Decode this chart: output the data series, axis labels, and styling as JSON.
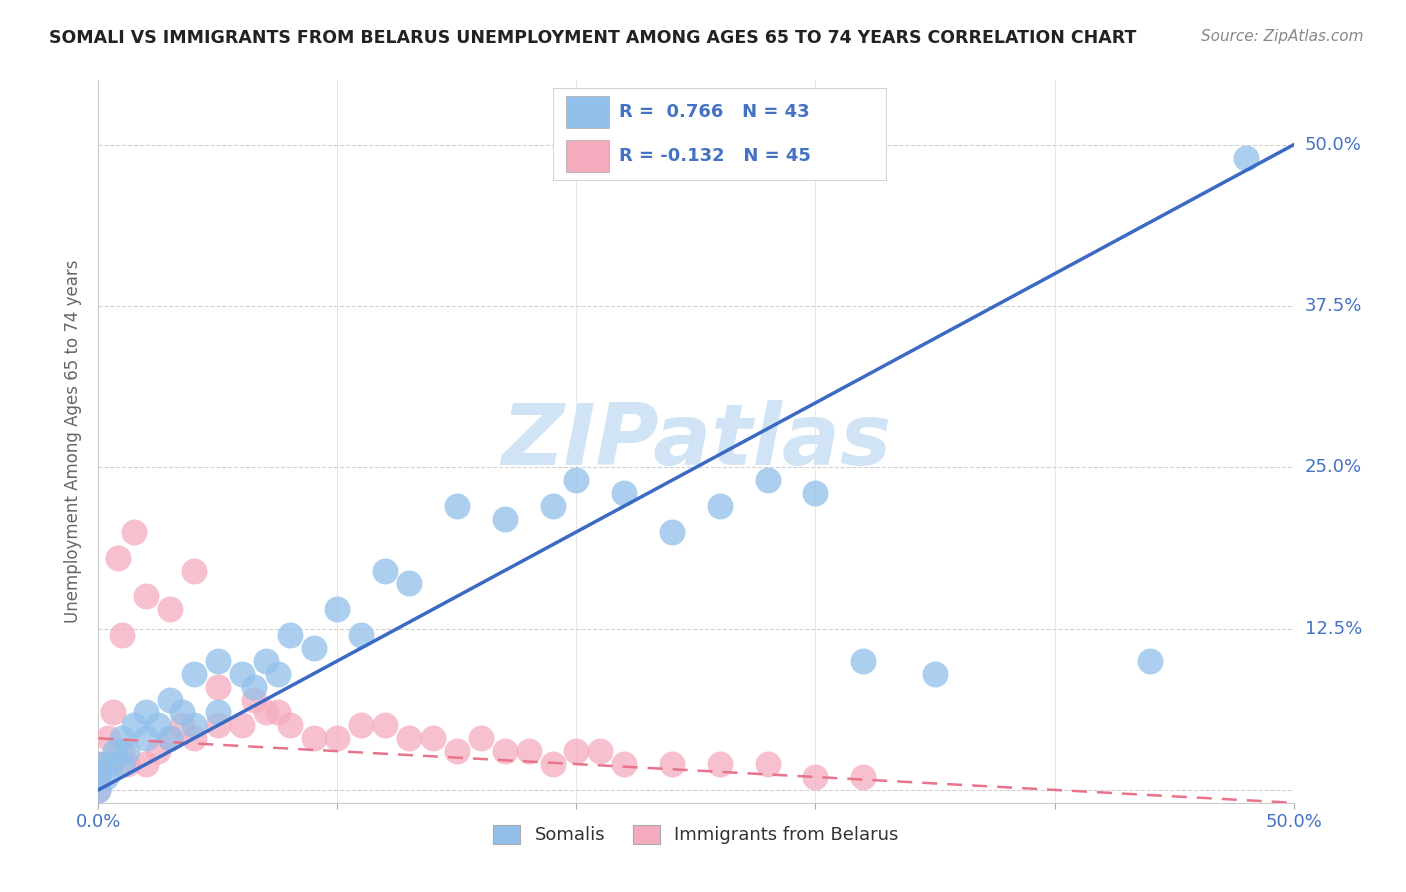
{
  "title": "SOMALI VS IMMIGRANTS FROM BELARUS UNEMPLOYMENT AMONG AGES 65 TO 74 YEARS CORRELATION CHART",
  "source": "Source: ZipAtlas.com",
  "ylabel": "Unemployment Among Ages 65 to 74 years",
  "xlim": [
    0.0,
    0.5
  ],
  "ylim": [
    -0.01,
    0.55
  ],
  "xticks": [
    0.0,
    0.1,
    0.2,
    0.3,
    0.4,
    0.5
  ],
  "yticks": [
    0.0,
    0.125,
    0.25,
    0.375,
    0.5
  ],
  "xticklabels": [
    "0.0%",
    "",
    "",
    "",
    "",
    "50.0%"
  ],
  "yticklabels_right": [
    "",
    "12.5%",
    "25.0%",
    "37.5%",
    "50.0%"
  ],
  "legend_blue_r": "R =  0.766",
  "legend_blue_n": "N = 43",
  "legend_pink_r": "R = -0.132",
  "legend_pink_n": "N = 45",
  "legend_label1": "Somalis",
  "legend_label2": "Immigrants from Belarus",
  "blue_color": "#92C0EA",
  "pink_color": "#F5ABBE",
  "blue_line_color": "#3B6AC4",
  "pink_line_color": "#E8748A",
  "watermark_color": "#D0E4F5",
  "somali_x": [
    0.0,
    0.0,
    0.0,
    0.003,
    0.005,
    0.007,
    0.01,
    0.01,
    0.012,
    0.015,
    0.02,
    0.02,
    0.025,
    0.03,
    0.03,
    0.035,
    0.04,
    0.04,
    0.05,
    0.05,
    0.06,
    0.065,
    0.07,
    0.075,
    0.08,
    0.09,
    0.1,
    0.11,
    0.12,
    0.13,
    0.15,
    0.17,
    0.19,
    0.2,
    0.22,
    0.24,
    0.26,
    0.28,
    0.3,
    0.32,
    0.35,
    0.44,
    0.48
  ],
  "somali_y": [
    0.0,
    0.01,
    0.02,
    0.01,
    0.02,
    0.03,
    0.02,
    0.04,
    0.03,
    0.05,
    0.04,
    0.06,
    0.05,
    0.04,
    0.07,
    0.06,
    0.05,
    0.09,
    0.06,
    0.1,
    0.09,
    0.08,
    0.1,
    0.09,
    0.12,
    0.11,
    0.14,
    0.12,
    0.17,
    0.16,
    0.22,
    0.21,
    0.22,
    0.24,
    0.23,
    0.2,
    0.22,
    0.24,
    0.23,
    0.1,
    0.09,
    0.1,
    0.49
  ],
  "belarus_x": [
    0.0,
    0.0,
    0.0,
    0.002,
    0.004,
    0.006,
    0.008,
    0.01,
    0.01,
    0.012,
    0.015,
    0.02,
    0.02,
    0.025,
    0.03,
    0.03,
    0.035,
    0.04,
    0.04,
    0.05,
    0.05,
    0.06,
    0.065,
    0.07,
    0.075,
    0.08,
    0.09,
    0.1,
    0.11,
    0.12,
    0.13,
    0.14,
    0.15,
    0.16,
    0.17,
    0.18,
    0.19,
    0.2,
    0.21,
    0.22,
    0.24,
    0.26,
    0.28,
    0.3,
    0.32
  ],
  "belarus_y": [
    0.0,
    0.01,
    0.02,
    0.02,
    0.04,
    0.06,
    0.18,
    0.03,
    0.12,
    0.02,
    0.2,
    0.02,
    0.15,
    0.03,
    0.04,
    0.14,
    0.05,
    0.04,
    0.17,
    0.05,
    0.08,
    0.05,
    0.07,
    0.06,
    0.06,
    0.05,
    0.04,
    0.04,
    0.05,
    0.05,
    0.04,
    0.04,
    0.03,
    0.04,
    0.03,
    0.03,
    0.02,
    0.03,
    0.03,
    0.02,
    0.02,
    0.02,
    0.02,
    0.01,
    0.01
  ],
  "blue_line_x": [
    0.0,
    0.5
  ],
  "blue_line_y": [
    0.0,
    0.5
  ],
  "pink_line_x": [
    0.0,
    0.5
  ],
  "pink_line_y": [
    0.04,
    -0.01
  ]
}
